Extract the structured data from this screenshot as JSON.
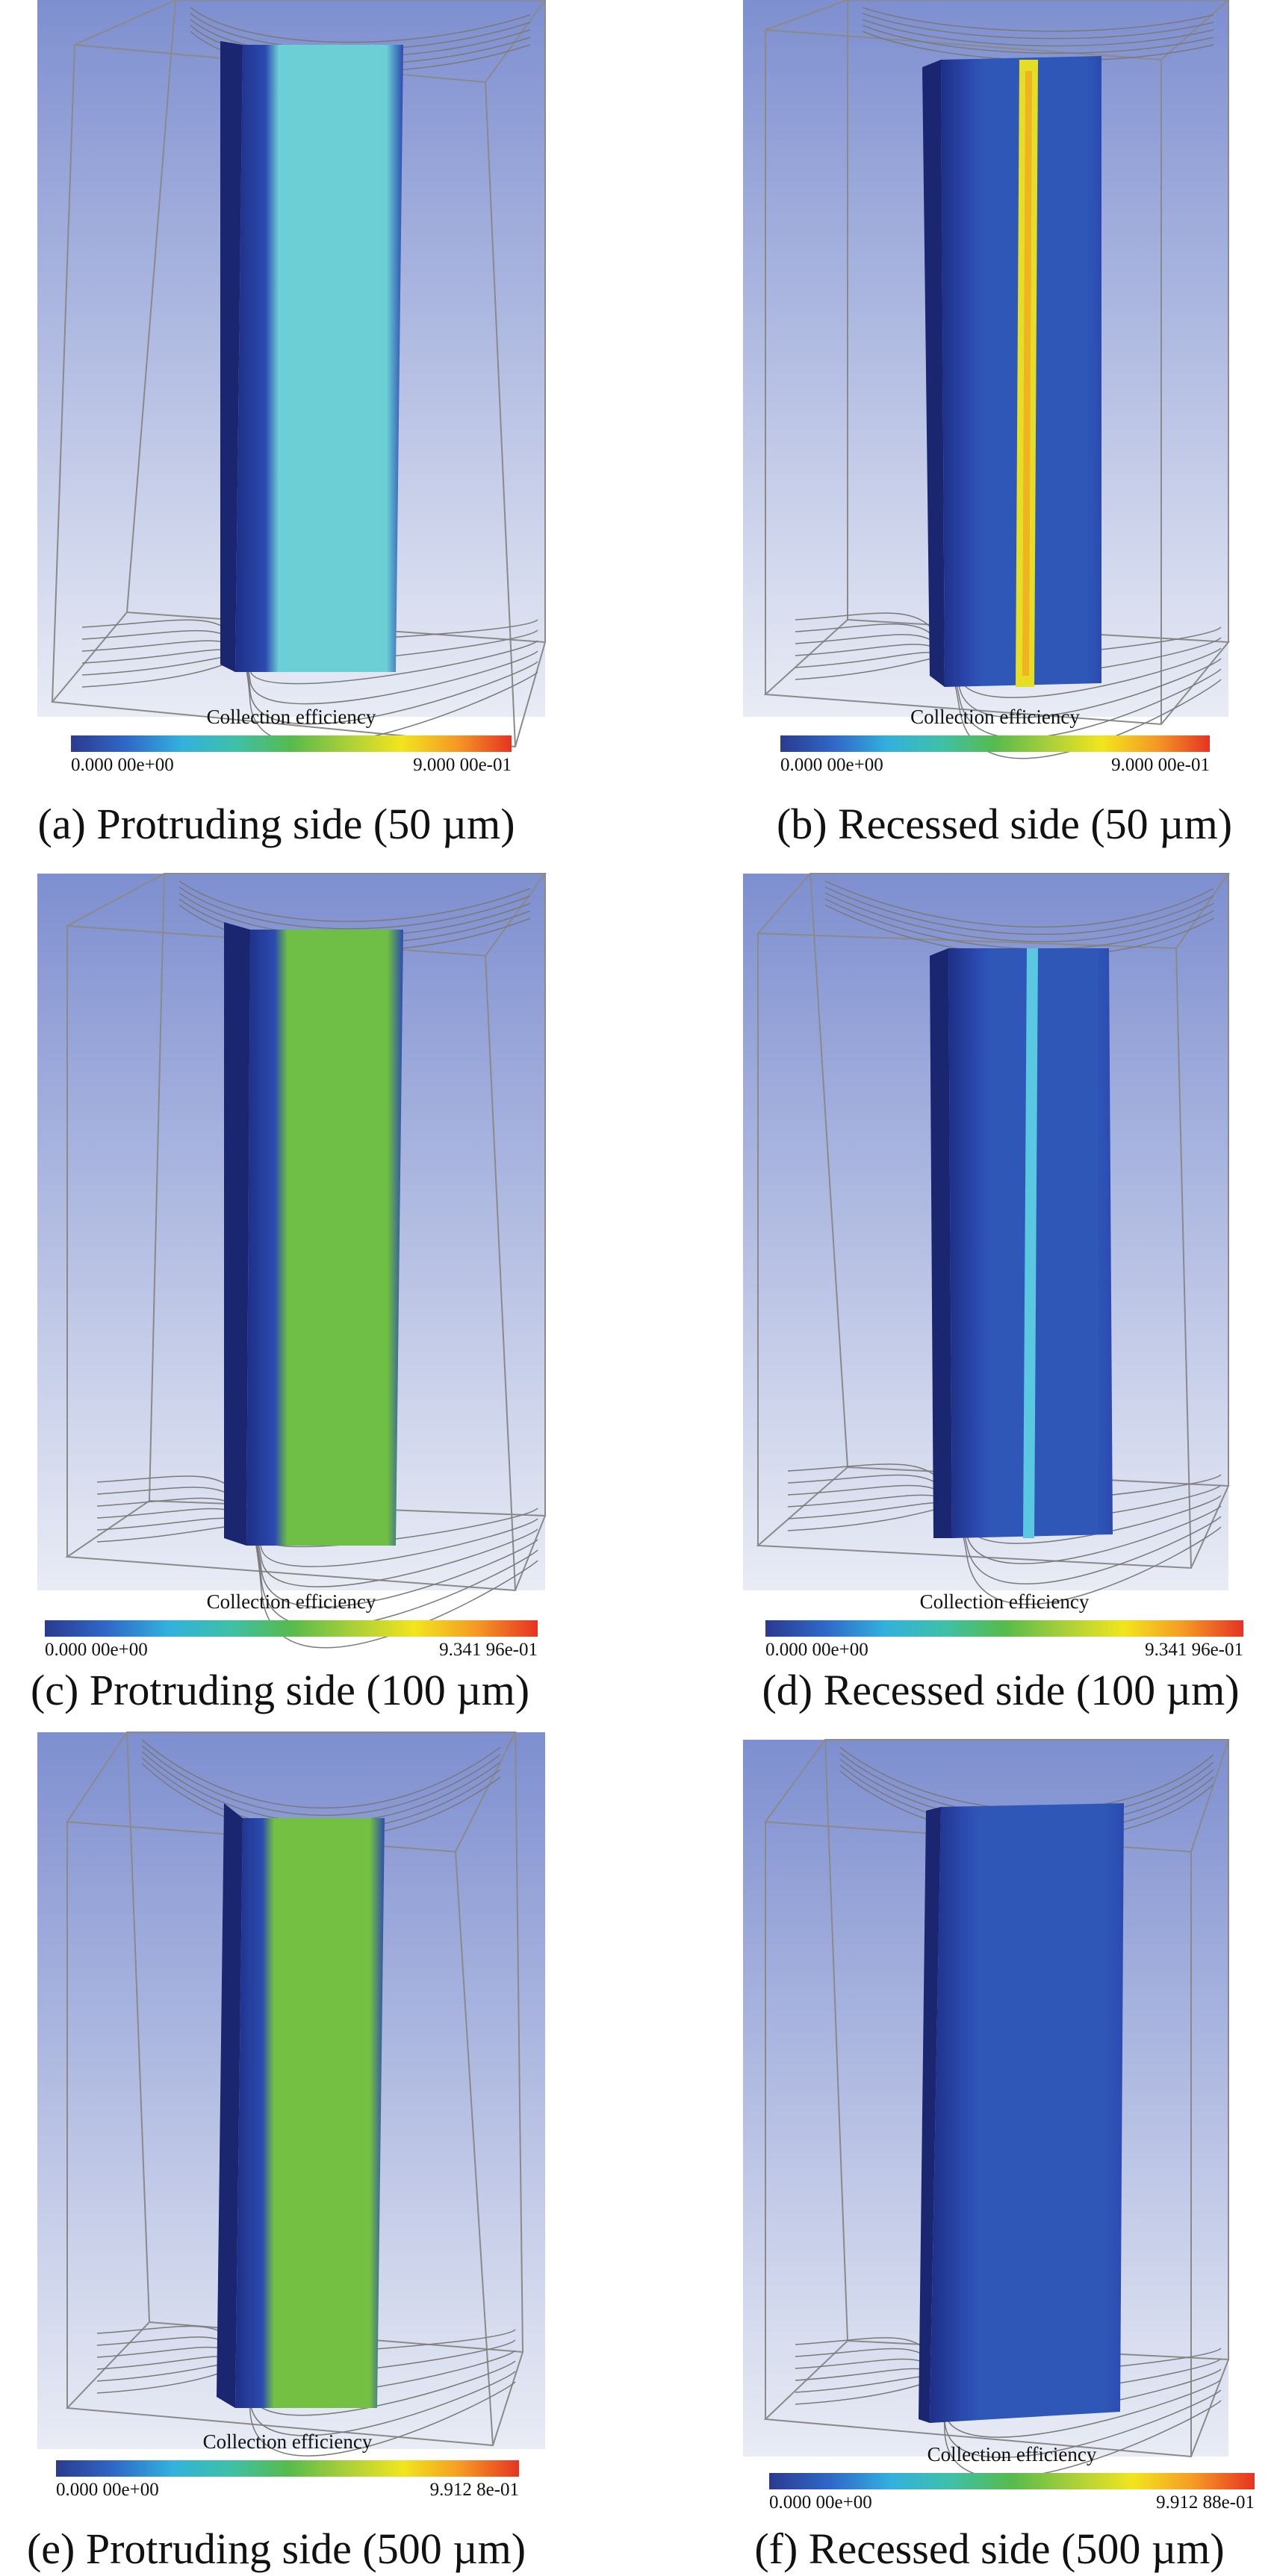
{
  "colorbar_gradient": [
    "#2b3a8f",
    "#2f68c8",
    "#33b0de",
    "#3fc0a8",
    "#56bb4c",
    "#a9cf3a",
    "#f2e51e",
    "#f59a24",
    "#e63322"
  ],
  "background_gradient": [
    "#7e8fd0",
    "#e9ecf5"
  ],
  "panels": [
    {
      "id": "a",
      "caption": "(a) Protruding side (50 µm)",
      "colorbar_title": "Collection efficiency",
      "colorbar_min": "0.000 00e+00",
      "colorbar_max": "9.000 00e-01",
      "surface_color": "#6ccfd6",
      "stripe_color": "#6ccfd6"
    },
    {
      "id": "b",
      "caption": "(b) Recessed side (50 µm)",
      "colorbar_title": "Collection efficiency",
      "colorbar_min": "0.000 00e+00",
      "colorbar_max": "9.000 00e-01",
      "surface_color": "#2f57b8",
      "stripe_color": "#e6de25"
    },
    {
      "id": "c",
      "caption": "(c) Protruding side (100 µm)",
      "colorbar_title": "Collection efficiency",
      "colorbar_min": "0.000 00e+00",
      "colorbar_max": "9.341 96e-01",
      "surface_color": "#6fbe45",
      "stripe_color": "#6fbe45"
    },
    {
      "id": "d",
      "caption": "(d) Recessed side (100 µm)",
      "colorbar_title": "Collection efficiency",
      "colorbar_min": "0.000 00e+00",
      "colorbar_max": "9.341 96e-01",
      "surface_color": "#2f57b8",
      "stripe_color": "#5ac8e0"
    },
    {
      "id": "e",
      "caption": "(e) Protruding side (500 µm)",
      "colorbar_title": "Collection efficiency",
      "colorbar_min": "0.000 00e+00",
      "colorbar_max": "9.912 8e-01",
      "surface_color": "#74c043",
      "stripe_color": "#74c043"
    },
    {
      "id": "f",
      "caption": "(f) Recessed side (500 µm)",
      "colorbar_title": "Collection efficiency",
      "colorbar_min": "0.000 00e+00",
      "colorbar_max": "9.912 88e-01",
      "surface_color": "#2f57b8",
      "stripe_color": "#2f57b8"
    }
  ]
}
